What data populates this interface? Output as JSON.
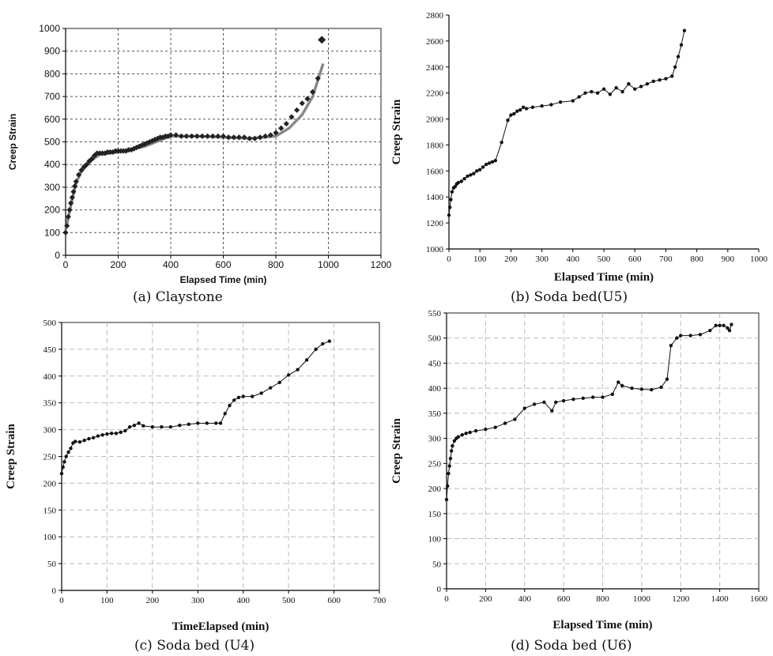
{
  "captions": [
    "(a) Claystone",
    "(b) Soda bed(U5)",
    "(c) Soda bed (U4)",
    "(d) Soda bed (U6)"
  ],
  "chart_data": [
    {
      "type": "scatter",
      "title": "",
      "xlabel": "Elapsed Time (min)",
      "ylabel": "Creep Strain",
      "xlim": [
        0,
        1200
      ],
      "ylim": [
        0,
        1000
      ],
      "xticks": [
        0,
        200,
        400,
        600,
        800,
        1000,
        1200
      ],
      "xtick_labels": [
        "0",
        "200",
        "400",
        "600",
        "800",
        "1000",
        "1200"
      ],
      "yticks": [
        0,
        100,
        200,
        300,
        400,
        500,
        600,
        700,
        800,
        900,
        1000
      ],
      "grid": "dashed",
      "series": [
        {
          "x": [
            0,
            5,
            10,
            15,
            20,
            25,
            30,
            35,
            40,
            50,
            60,
            70,
            80,
            90,
            100,
            110,
            120,
            130,
            140,
            150,
            160,
            170,
            180,
            190,
            200,
            210,
            220,
            230,
            240,
            250,
            260,
            270,
            280,
            290,
            300,
            310,
            320,
            330,
            340,
            350,
            360,
            370,
            380,
            390,
            400,
            420,
            440,
            460,
            480,
            500,
            520,
            540,
            560,
            580,
            600,
            620,
            640,
            660,
            680,
            700,
            720,
            740,
            760,
            780,
            800,
            820,
            840,
            860,
            880,
            900,
            920,
            940,
            960,
            975
          ],
          "y": [
            100,
            130,
            170,
            200,
            230,
            255,
            280,
            305,
            325,
            355,
            375,
            390,
            400,
            415,
            425,
            440,
            450,
            450,
            450,
            450,
            455,
            455,
            455,
            460,
            460,
            460,
            460,
            460,
            465,
            465,
            470,
            475,
            480,
            485,
            490,
            495,
            500,
            505,
            510,
            515,
            520,
            520,
            525,
            525,
            530,
            530,
            525,
            525,
            525,
            525,
            525,
            525,
            525,
            525,
            525,
            520,
            520,
            520,
            520,
            515,
            515,
            520,
            525,
            530,
            540,
            560,
            580,
            610,
            640,
            670,
            690,
            720,
            780,
            950
          ]
        }
      ],
      "fit_line": {
        "x": [
          0,
          20,
          40,
          60,
          80,
          100,
          130,
          200,
          300,
          400,
          500,
          600,
          700,
          800,
          850,
          900,
          940,
          980
        ],
        "y": [
          110,
          220,
          320,
          370,
          395,
          420,
          445,
          455,
          480,
          525,
          525,
          520,
          515,
          525,
          560,
          620,
          700,
          845
        ]
      }
    },
    {
      "type": "line",
      "title": "",
      "xlabel": "Elapsed Time (min)",
      "ylabel": "Creep Strain",
      "xlim": [
        0,
        1000
      ],
      "ylim": [
        1000,
        2800
      ],
      "xticks": [
        0,
        100,
        200,
        300,
        400,
        500,
        600,
        700,
        800,
        900,
        1000
      ],
      "yticks": [
        1000,
        1200,
        1400,
        1600,
        1800,
        2000,
        2200,
        2400,
        2600,
        2800
      ],
      "grid": "none",
      "series": [
        {
          "x": [
            0,
            3,
            6,
            10,
            15,
            20,
            25,
            30,
            40,
            50,
            60,
            70,
            80,
            90,
            100,
            110,
            120,
            130,
            140,
            150,
            170,
            190,
            200,
            210,
            220,
            230,
            240,
            250,
            270,
            300,
            330,
            360,
            400,
            420,
            440,
            460,
            480,
            500,
            520,
            540,
            560,
            580,
            600,
            620,
            640,
            660,
            680,
            700,
            720,
            730,
            740,
            750,
            760
          ],
          "y": [
            1260,
            1320,
            1380,
            1440,
            1470,
            1480,
            1500,
            1510,
            1520,
            1540,
            1560,
            1570,
            1580,
            1600,
            1610,
            1630,
            1650,
            1660,
            1670,
            1680,
            1820,
            1990,
            2030,
            2040,
            2060,
            2070,
            2090,
            2080,
            2090,
            2100,
            2110,
            2130,
            2140,
            2170,
            2200,
            2210,
            2200,
            2230,
            2190,
            2240,
            2210,
            2270,
            2230,
            2250,
            2270,
            2290,
            2300,
            2310,
            2330,
            2400,
            2480,
            2570,
            2680
          ]
        }
      ]
    },
    {
      "type": "line",
      "title": "",
      "xlabel": "TimeElapsed (min)",
      "ylabel": "Creep Strain",
      "xlim": [
        0,
        700
      ],
      "ylim": [
        0,
        500
      ],
      "xticks": [
        0,
        100,
        200,
        300,
        400,
        500,
        600,
        700
      ],
      "yticks": [
        0,
        50,
        100,
        150,
        200,
        250,
        300,
        350,
        400,
        450,
        500
      ],
      "ytick_labels": [
        "0",
        "50",
        "100",
        "150",
        "200",
        "250",
        "300",
        "350",
        "400",
        "450",
        "500"
      ],
      "grid": "dashed",
      "series": [
        {
          "x": [
            0,
            3,
            6,
            10,
            15,
            20,
            25,
            30,
            40,
            50,
            60,
            70,
            80,
            90,
            100,
            110,
            120,
            130,
            140,
            150,
            160,
            170,
            180,
            200,
            220,
            240,
            260,
            280,
            300,
            320,
            340,
            350,
            360,
            370,
            380,
            390,
            400,
            420,
            440,
            460,
            480,
            500,
            520,
            540,
            560,
            575,
            590
          ],
          "y": [
            218,
            230,
            240,
            250,
            258,
            265,
            275,
            278,
            277,
            280,
            283,
            285,
            288,
            290,
            292,
            293,
            293,
            295,
            298,
            305,
            308,
            312,
            307,
            305,
            305,
            305,
            308,
            310,
            312,
            312,
            312,
            312,
            330,
            345,
            355,
            360,
            362,
            362,
            368,
            378,
            388,
            402,
            412,
            430,
            450,
            460,
            465
          ]
        }
      ]
    },
    {
      "type": "line",
      "title": "",
      "xlabel": "Elapsed Time (min)",
      "ylabel": "Creep Strain",
      "xlim": [
        0,
        1600
      ],
      "ylim": [
        0,
        550
      ],
      "xticks": [
        0,
        200,
        400,
        600,
        800,
        1000,
        1200,
        1400,
        1600
      ],
      "yticks": [
        0,
        50,
        100,
        150,
        200,
        250,
        300,
        350,
        400,
        450,
        500,
        550
      ],
      "grid": "dashed",
      "series": [
        {
          "x": [
            0,
            5,
            10,
            15,
            20,
            25,
            30,
            40,
            50,
            60,
            80,
            100,
            120,
            150,
            200,
            250,
            300,
            350,
            400,
            450,
            500,
            540,
            560,
            600,
            650,
            700,
            750,
            800,
            850,
            880,
            900,
            950,
            1000,
            1050,
            1100,
            1130,
            1150,
            1180,
            1200,
            1250,
            1300,
            1350,
            1380,
            1400,
            1420,
            1440,
            1450,
            1460
          ],
          "y": [
            178,
            205,
            230,
            245,
            260,
            275,
            285,
            295,
            300,
            303,
            307,
            310,
            312,
            315,
            318,
            322,
            330,
            338,
            360,
            368,
            372,
            355,
            372,
            375,
            378,
            380,
            382,
            382,
            388,
            412,
            405,
            400,
            398,
            397,
            402,
            418,
            485,
            500,
            505,
            505,
            507,
            515,
            525,
            525,
            525,
            520,
            515,
            527
          ]
        }
      ]
    }
  ]
}
